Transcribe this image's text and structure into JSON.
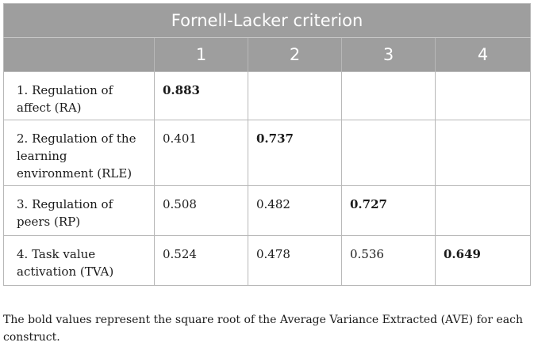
{
  "table": {
    "title": "Fornell-Lacker criterion",
    "column_headers": [
      "1",
      "2",
      "3",
      "4"
    ],
    "rows": [
      {
        "label": "1. Regulation of affect (RA)",
        "cells": [
          "0.883",
          "",
          "",
          ""
        ]
      },
      {
        "label": "2. Regulation of the learning environment (RLE)",
        "cells": [
          "0.401",
          "0.737",
          "",
          ""
        ]
      },
      {
        "label": "3. Regulation of peers (RP)",
        "cells": [
          "0.508",
          "0.482",
          "0.727",
          ""
        ]
      },
      {
        "label": "4. Task value activation (TVA)",
        "cells": [
          "0.524",
          "0.478",
          "0.536",
          "0.649"
        ]
      }
    ],
    "bold_cells": [
      "0.883",
      "0.737",
      "0.727",
      "0.649"
    ]
  },
  "footnote": "The bold values represent the square root of the Average Variance Extracted (AVE) for each construct.",
  "colors": {
    "header_bg": "#9e9e9e",
    "header_text": "#ffffff",
    "border": "#b8b8b8"
  }
}
